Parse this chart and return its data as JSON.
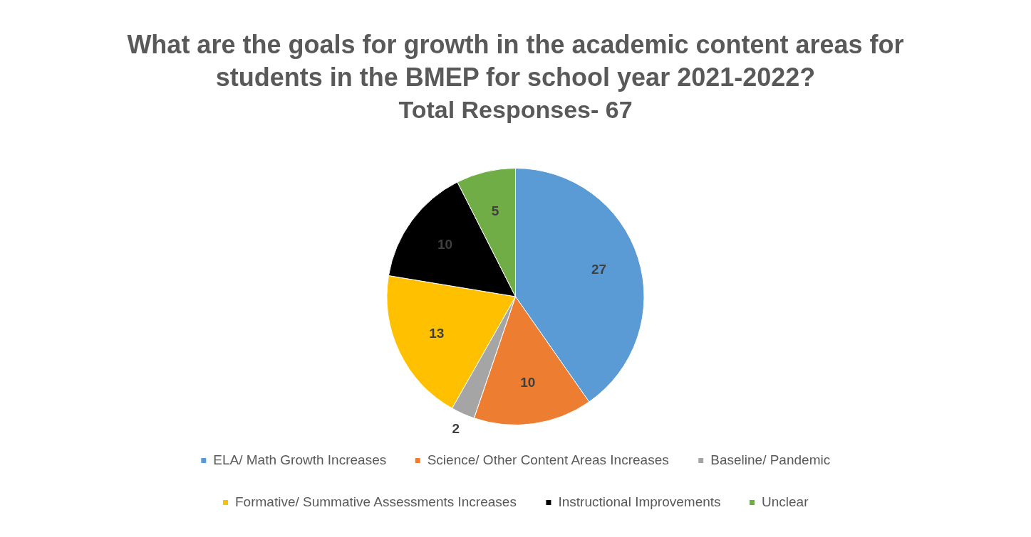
{
  "chart_data": {
    "type": "pie",
    "title": "What are the goals for growth in the academic content areas for students in the BMEP for school year 2021-2022?",
    "subtitle": "Total Responses- 67",
    "categories": [
      "ELA/ Math Growth Increases",
      "Science/ Other Content Areas Increases",
      "Baseline/ Pandemic",
      "Formative/ Summative Assessments Increases",
      "Instructional Improvements",
      "Unclear"
    ],
    "values": [
      27,
      10,
      2,
      13,
      10,
      5
    ],
    "colors": [
      "#5b9bd5",
      "#ed7d31",
      "#a5a5a5",
      "#ffc000",
      "#000000",
      "#70ad47"
    ],
    "data_labels": true,
    "legend": "bottom"
  }
}
